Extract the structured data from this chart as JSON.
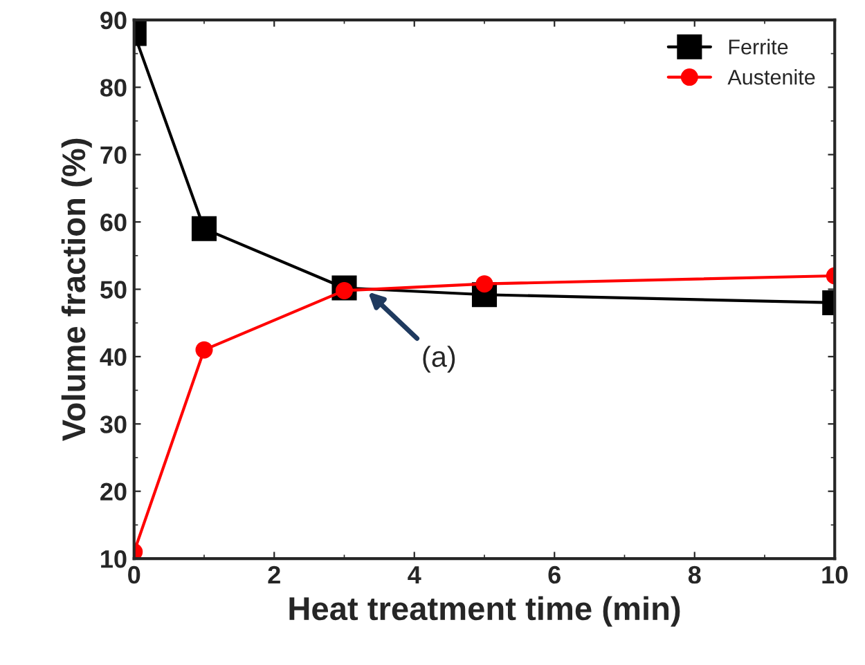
{
  "chart_data": {
    "type": "line",
    "xlabel": "Heat treatment time (min)",
    "ylabel": "Volume fraction (%)",
    "x": [
      0,
      1,
      3,
      5,
      10
    ],
    "series": [
      {
        "name": "Ferrite",
        "color": "#000000",
        "marker": "square",
        "values": [
          88,
          59,
          50.2,
          49.2,
          48
        ]
      },
      {
        "name": "Austenite",
        "color": "#ff0000",
        "marker": "circle",
        "values": [
          11,
          41,
          49.8,
          50.8,
          52
        ]
      }
    ],
    "xlim": [
      0,
      10
    ],
    "xticks": [
      0,
      2,
      4,
      6,
      8,
      10
    ],
    "ylim": [
      10,
      90
    ],
    "yticks": [
      10,
      20,
      30,
      40,
      50,
      60,
      70,
      80,
      90
    ],
    "grid": false,
    "legend": "top right",
    "annotations": [
      {
        "text": "(a)",
        "x": 3.3,
        "y": 50
      }
    ]
  }
}
